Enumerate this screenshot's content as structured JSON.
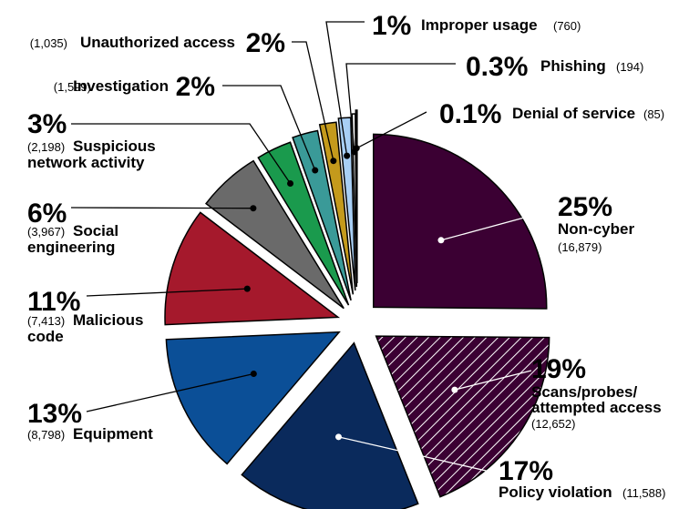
{
  "chart_data": {
    "type": "pie",
    "exploded": true,
    "legend": "none",
    "slices": [
      {
        "pct": "25%",
        "name": "Non-cyber",
        "count": "(16,879)",
        "value": 16879,
        "color": "#3b0033",
        "hatch": false
      },
      {
        "pct": "19%",
        "name": "Scans/probes/ attempted access",
        "count": "(12,652)",
        "value": 12652,
        "color": "#3b0033",
        "hatch": true
      },
      {
        "pct": "17%",
        "name": "Policy violation",
        "count": "(11,588)",
        "value": 11588,
        "color": "#0a2a5c",
        "hatch": false
      },
      {
        "pct": "13%",
        "name": "Equipment",
        "count": "(8,798)",
        "value": 8798,
        "color": "#0b4f97",
        "hatch": false
      },
      {
        "pct": "11%",
        "name": "Malicious code",
        "count": "(7,413)",
        "value": 7413,
        "color": "#a5192c",
        "hatch": false
      },
      {
        "pct": "6%",
        "name": "Social engineering",
        "count": "(3,967)",
        "value": 3967,
        "color": "#6a6a6a",
        "hatch": false
      },
      {
        "pct": "3%",
        "name": "Suspicious network activity",
        "count": "(2,198)",
        "value": 2198,
        "color": "#1a9a4d",
        "hatch": false
      },
      {
        "pct": "2%",
        "name": "Investigation",
        "count": "(1,599)",
        "value": 1599,
        "color": "#3a9a98",
        "hatch": false
      },
      {
        "pct": "2%",
        "name": "Unauthorized access",
        "count": "(1,035)",
        "value": 1035,
        "color": "#c49a1c",
        "hatch": false
      },
      {
        "pct": "1%",
        "name": "Improper usage",
        "count": "(760)",
        "value": 760,
        "color": "#a8cff5",
        "hatch": false
      },
      {
        "pct": "0.3%",
        "name": "Phishing",
        "count": "(194)",
        "value": 194,
        "color": "#ffffff",
        "hatch": false
      },
      {
        "pct": "0.1%",
        "name": "Denial of service",
        "count": "(85)",
        "value": 85,
        "color": "#ffffff",
        "hatch": false
      }
    ]
  }
}
